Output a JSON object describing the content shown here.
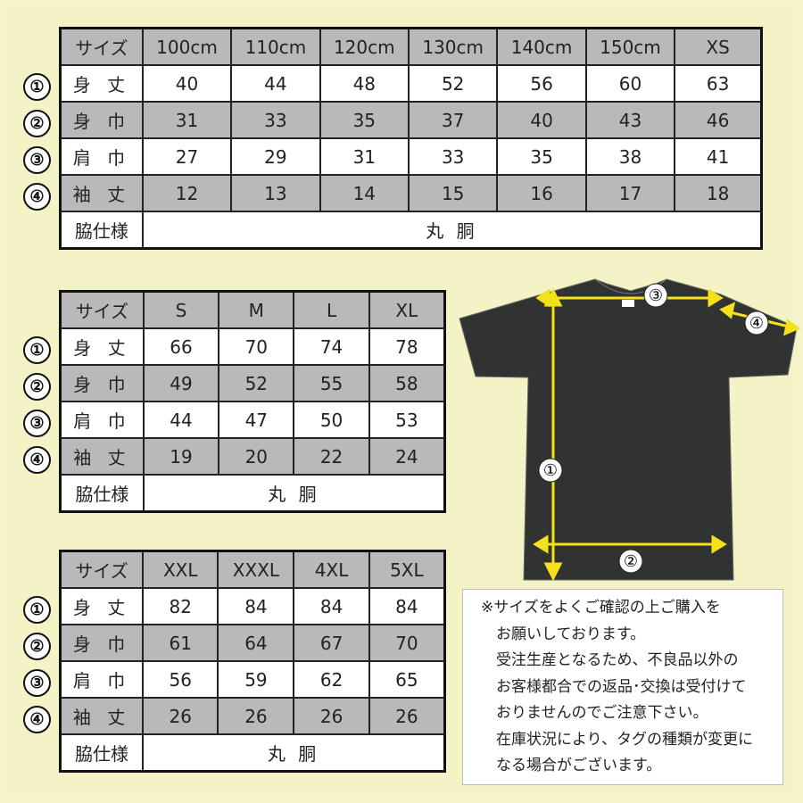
{
  "row_labels": [
    "身 丈",
    "身 巾",
    "肩 巾",
    "袖 丈"
  ],
  "size_header": "サイズ",
  "side_label": "脇仕様",
  "side_value": "丸 胴",
  "markers": [
    "①",
    "②",
    "③",
    "④"
  ],
  "tables": [
    {
      "sizes": [
        "100cm",
        "110cm",
        "120cm",
        "130cm",
        "140cm",
        "150cm",
        "XS"
      ],
      "rows": [
        [
          "40",
          "44",
          "48",
          "52",
          "56",
          "60",
          "63"
        ],
        [
          "31",
          "33",
          "35",
          "37",
          "40",
          "43",
          "46"
        ],
        [
          "27",
          "29",
          "31",
          "33",
          "35",
          "38",
          "41"
        ],
        [
          "12",
          "13",
          "14",
          "15",
          "16",
          "17",
          "18"
        ]
      ]
    },
    {
      "sizes": [
        "S",
        "M",
        "L",
        "XL"
      ],
      "rows": [
        [
          "66",
          "70",
          "74",
          "78"
        ],
        [
          "49",
          "52",
          "55",
          "58"
        ],
        [
          "44",
          "47",
          "50",
          "53"
        ],
        [
          "19",
          "20",
          "22",
          "24"
        ]
      ]
    },
    {
      "sizes": [
        "XXL",
        "XXXL",
        "4XL",
        "5XL"
      ],
      "rows": [
        [
          "82",
          "84",
          "84",
          "84"
        ],
        [
          "61",
          "64",
          "67",
          "70"
        ],
        [
          "56",
          "59",
          "62",
          "65"
        ],
        [
          "26",
          "26",
          "26",
          "26"
        ]
      ]
    }
  ],
  "diagram": {
    "labels": [
      "①",
      "②",
      "③",
      "④"
    ],
    "shirt_color": "#303331",
    "arrow_color": "#f5e11a"
  },
  "note": [
    "※サイズをよくご確認の上ご購入を",
    "　お願いしております。",
    "　受注生産となるため、不良品以外の",
    "　お客様都合での返品･交換は受付けて",
    "　おりませんのでご注意下さい。",
    "　在庫状況により、タグの種類が変更に",
    "　なる場合がございます。"
  ]
}
